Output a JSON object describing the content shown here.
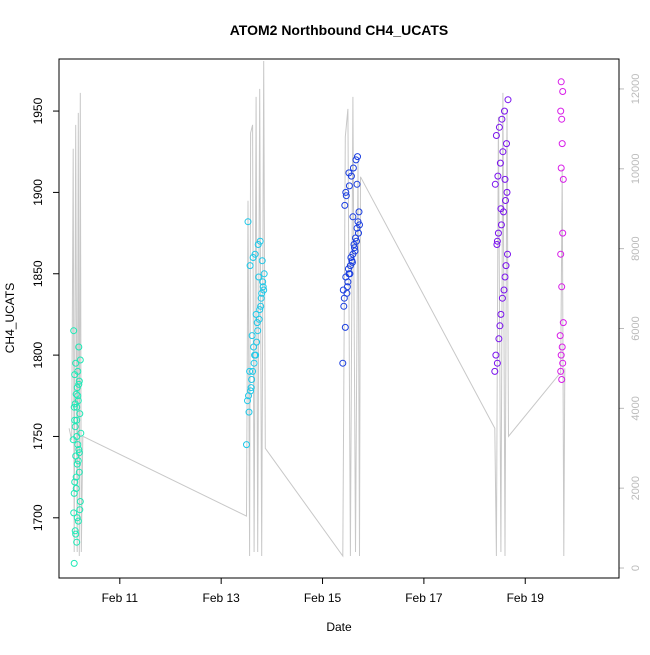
{
  "chart_data": {
    "type": "scatter",
    "title": "ATOM2 Northbound CH4_UCATS",
    "xlabel": "Date",
    "ylabel": "CH4_UCATS",
    "x_unit": "days since Feb 10 00:00",
    "xlim": [
      -0.2,
      10.85
    ],
    "ylim": [
      1663,
      1982
    ],
    "y2lim": [
      -250,
      12750
    ],
    "x_ticks": [
      {
        "x": 1,
        "label": "Feb 11"
      },
      {
        "x": 3,
        "label": "Feb 13"
      },
      {
        "x": 5,
        "label": "Feb 15"
      },
      {
        "x": 7,
        "label": "Feb 17"
      },
      {
        "x": 9,
        "label": "Feb 19"
      }
    ],
    "y_ticks": [
      1700,
      1750,
      1800,
      1850,
      1900,
      1950
    ],
    "y2_ticks": [
      0,
      2000,
      4000,
      6000,
      8000,
      10000,
      12000
    ],
    "colors": {
      "flight1": "#1de9b6",
      "flight2": "#1ec8e8",
      "flight3": "#1a3ee0",
      "flight4": "#7a12ee",
      "flight5": "#d81ee8",
      "altitude": "#c8c8c8"
    },
    "series": [
      {
        "name": "flight1",
        "color_key": "flight1",
        "x": [
          0.1,
          0.15,
          0.12,
          0.18,
          0.09,
          0.22,
          0.14,
          0.11,
          0.2,
          0.16,
          0.13,
          0.19,
          0.17,
          0.08,
          0.23,
          0.12,
          0.15,
          0.21,
          0.1,
          0.18,
          0.14,
          0.16,
          0.2,
          0.11,
          0.13,
          0.19,
          0.09,
          0.22,
          0.17,
          0.12,
          0.15,
          0.18,
          0.14,
          0.1,
          0.21,
          0.16,
          0.13,
          0.2,
          0.11,
          0.17,
          0.19,
          0.15
        ],
        "y": [
          1672,
          1685,
          1692,
          1698,
          1703,
          1710,
          1718,
          1722,
          1728,
          1733,
          1738,
          1742,
          1745,
          1748,
          1752,
          1756,
          1760,
          1764,
          1768,
          1772,
          1776,
          1780,
          1784,
          1788,
          1795,
          1805,
          1815,
          1797,
          1790,
          1770,
          1750,
          1735,
          1725,
          1715,
          1705,
          1700,
          1690,
          1740,
          1760,
          1775,
          1782,
          1768
        ]
      },
      {
        "name": "flight2",
        "color_key": "flight2",
        "x": [
          3.5,
          3.55,
          3.52,
          3.58,
          3.6,
          3.62,
          3.65,
          3.68,
          3.7,
          3.72,
          3.75,
          3.78,
          3.8,
          3.82,
          3.85,
          3.57,
          3.63,
          3.67,
          3.73,
          3.77,
          3.53,
          3.59,
          3.66,
          3.71,
          3.79,
          3.83,
          3.61,
          3.69,
          3.74,
          3.81,
          3.56,
          3.64,
          3.76,
          3.84,
          3.54
        ],
        "y": [
          1745,
          1765,
          1772,
          1778,
          1785,
          1790,
          1795,
          1800,
          1808,
          1815,
          1822,
          1830,
          1838,
          1845,
          1850,
          1855,
          1860,
          1862,
          1868,
          1870,
          1882,
          1780,
          1800,
          1820,
          1835,
          1842,
          1812,
          1825,
          1848,
          1858,
          1790,
          1805,
          1828,
          1840,
          1775
        ]
      },
      {
        "name": "flight3",
        "color_key": "flight3",
        "x": [
          5.4,
          5.45,
          5.42,
          5.48,
          5.5,
          5.52,
          5.55,
          5.58,
          5.6,
          5.62,
          5.65,
          5.68,
          5.7,
          5.72,
          5.44,
          5.47,
          5.53,
          5.57,
          5.61,
          5.66,
          5.69,
          5.41,
          5.46,
          5.51,
          5.56,
          5.63,
          5.67,
          5.71,
          5.43,
          5.49,
          5.54,
          5.59,
          5.64,
          5.73,
          5.46,
          5.52,
          5.6,
          5.68
        ],
        "y": [
          1795,
          1817,
          1830,
          1838,
          1845,
          1850,
          1855,
          1858,
          1862,
          1868,
          1872,
          1878,
          1882,
          1888,
          1892,
          1898,
          1904,
          1910,
          1915,
          1920,
          1922,
          1840,
          1848,
          1853,
          1860,
          1866,
          1870,
          1875,
          1835,
          1842,
          1850,
          1857,
          1864,
          1880,
          1900,
          1912,
          1885,
          1905
        ]
      },
      {
        "name": "flight4",
        "color_key": "flight4",
        "x": [
          8.4,
          8.45,
          8.42,
          8.48,
          8.5,
          8.52,
          8.55,
          8.58,
          8.6,
          8.62,
          8.65,
          8.44,
          8.47,
          8.53,
          8.57,
          8.61,
          8.64,
          8.41,
          8.46,
          8.51,
          8.56,
          8.63,
          8.43,
          8.49,
          8.54,
          8.59,
          8.66,
          8.45,
          8.52,
          8.6
        ],
        "y": [
          1790,
          1795,
          1800,
          1810,
          1818,
          1825,
          1835,
          1840,
          1848,
          1855,
          1862,
          1868,
          1875,
          1880,
          1888,
          1895,
          1900,
          1905,
          1910,
          1918,
          1925,
          1930,
          1935,
          1940,
          1945,
          1950,
          1957,
          1870,
          1890,
          1908
        ]
      },
      {
        "name": "flight5",
        "color_key": "flight5",
        "x": [
          9.72,
          9.7,
          9.74,
          9.71,
          9.73,
          9.69,
          9.75,
          9.72,
          9.7,
          9.74,
          9.71,
          9.73,
          9.72,
          9.7,
          9.74,
          9.71,
          9.75
        ],
        "y": [
          1785,
          1790,
          1795,
          1800,
          1805,
          1812,
          1820,
          1842,
          1862,
          1875,
          1915,
          1930,
          1945,
          1950,
          1962,
          1968,
          1908
        ]
      }
    ],
    "altitude_series": {
      "name": "altitude",
      "color_key": "altitude",
      "axis": "right",
      "x": [
        0.0,
        0.05,
        0.08,
        0.1,
        0.13,
        0.16,
        0.18,
        0.2,
        0.22,
        0.24,
        0.27,
        3.5,
        3.53,
        3.56,
        3.58,
        3.62,
        3.65,
        3.69,
        3.72,
        3.76,
        3.8,
        3.84,
        3.87,
        5.4,
        5.45,
        5.5,
        5.55,
        5.6,
        5.65,
        5.7,
        5.73,
        5.75,
        8.4,
        8.43,
        8.47,
        8.52,
        8.56,
        8.6,
        8.64,
        8.67,
        9.7,
        9.73,
        9.76,
        9.78
      ],
      "y": [
        3500,
        3200,
        10500,
        400,
        11100,
        400,
        11400,
        300,
        11900,
        400,
        3300,
        1300,
        9200,
        300,
        10900,
        11100,
        400,
        11800,
        400,
        12000,
        300,
        12700,
        3000,
        300,
        10800,
        11500,
        300,
        11800,
        400,
        10200,
        300,
        9800,
        3500,
        300,
        11300,
        400,
        11900,
        300,
        11500,
        3300,
        4900,
        10000,
        300,
        5000
      ]
    }
  }
}
